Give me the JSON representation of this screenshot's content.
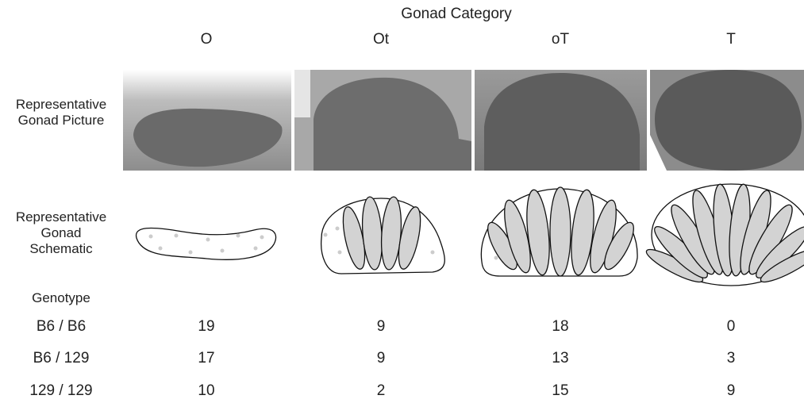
{
  "header": {
    "title": "Gonad Category",
    "columns": [
      "O",
      "Ot",
      "oT",
      "T"
    ]
  },
  "row_labels": {
    "picture": "Representative Gonad Picture",
    "schematic": "Representative Gonad Schematic",
    "genotype": "Genotype"
  },
  "table": {
    "rows": [
      {
        "genotype": "B6 / B6",
        "counts": [
          19,
          9,
          18,
          0
        ]
      },
      {
        "genotype": "B6 / 129",
        "counts": [
          17,
          9,
          13,
          3
        ]
      },
      {
        "genotype": "129 / 129",
        "counts": [
          10,
          2,
          15,
          9
        ]
      }
    ]
  }
}
